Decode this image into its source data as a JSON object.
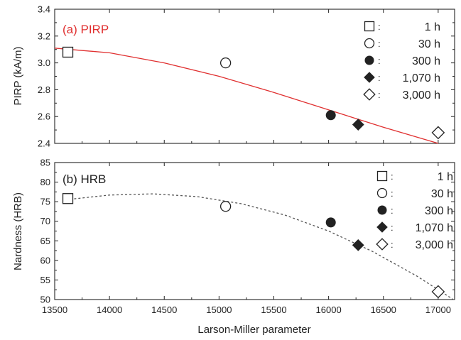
{
  "xlabel": "Larson-Miller parameter",
  "colors": {
    "fit_a": "#e03030",
    "fit_b": "#555555",
    "marker": "#222222"
  },
  "chart_data": [
    {
      "type": "scatter",
      "panel": "(a) PIRP",
      "title": "(a) PIRP",
      "title_color": "#e03030",
      "ylabel": "PIRP (kA/m)",
      "xlim": [
        13500,
        17150
      ],
      "ylim": [
        2.4,
        3.4
      ],
      "yticks": [
        2.4,
        2.6,
        2.8,
        3.0,
        3.2,
        3.4
      ],
      "ytick_labels": [
        "2.4",
        "2.6",
        "2.8",
        "3.0",
        "3.2",
        "3.4"
      ],
      "series": [
        {
          "name": "1 h",
          "marker": "open-square",
          "x": [
            13620
          ],
          "y": [
            3.08
          ]
        },
        {
          "name": "30 h",
          "marker": "open-circle",
          "x": [
            15060
          ],
          "y": [
            3.0
          ]
        },
        {
          "name": "300 h",
          "marker": "filled-circle",
          "x": [
            16020
          ],
          "y": [
            2.61
          ]
        },
        {
          "name": "1,070 h",
          "marker": "filled-diamond",
          "x": [
            16270
          ],
          "y": [
            2.54
          ]
        },
        {
          "name": "3,000 h",
          "marker": "open-diamond",
          "x": [
            17000
          ],
          "y": [
            2.48
          ]
        }
      ],
      "fit": {
        "style": "solid",
        "color": "#e03030",
        "x": [
          13500,
          14000,
          14500,
          15000,
          15500,
          16000,
          16500,
          17000
        ],
        "y": [
          3.11,
          3.075,
          3.0,
          2.9,
          2.78,
          2.65,
          2.52,
          2.4
        ]
      },
      "legend": {
        "placement": "top-right",
        "labels": [
          "1 h",
          "30 h",
          "300 h",
          "1,070 h",
          "3,000 h"
        ]
      }
    },
    {
      "type": "scatter",
      "panel": "(b) HRB",
      "title": "(b) HRB",
      "title_color": "#222222",
      "ylabel": "Nardness (HRB)",
      "xlim": [
        13500,
        17150
      ],
      "ylim": [
        50,
        85
      ],
      "yticks": [
        50,
        55,
        60,
        65,
        70,
        75,
        80,
        85
      ],
      "ytick_labels": [
        "50",
        "55",
        "60",
        "65",
        "70",
        "75",
        "80",
        "85"
      ],
      "xticks": [
        13500,
        14000,
        14500,
        15000,
        15500,
        16000,
        16500,
        17000
      ],
      "xtick_labels": [
        "13500",
        "14000",
        "14500",
        "15000",
        "15500",
        "16000",
        "16500",
        "17000"
      ],
      "series": [
        {
          "name": "1 h",
          "marker": "open-square",
          "x": [
            13620
          ],
          "y": [
            75.8
          ]
        },
        {
          "name": "30 h",
          "marker": "open-circle",
          "x": [
            15060
          ],
          "y": [
            73.8
          ]
        },
        {
          "name": "300 h",
          "marker": "filled-circle",
          "x": [
            16020
          ],
          "y": [
            69.7
          ]
        },
        {
          "name": "1,070 h",
          "marker": "filled-diamond",
          "x": [
            16270
          ],
          "y": [
            63.9
          ]
        },
        {
          "name": "3,000 h",
          "marker": "open-diamond",
          "x": [
            17000
          ],
          "y": [
            52.0
          ]
        }
      ],
      "fit": {
        "style": "dashed",
        "color": "#555555",
        "x": [
          13600,
          14000,
          14400,
          14800,
          15200,
          15600,
          16000,
          16400,
          16800,
          17150
        ],
        "y": [
          75.5,
          76.7,
          77.0,
          76.3,
          74.5,
          71.6,
          67.5,
          62.3,
          56.1,
          49.8
        ]
      },
      "legend": {
        "placement": "top-right",
        "labels": [
          "1 h",
          "30 h",
          "300 h",
          "1,070 h",
          "3,000 h"
        ]
      }
    }
  ]
}
